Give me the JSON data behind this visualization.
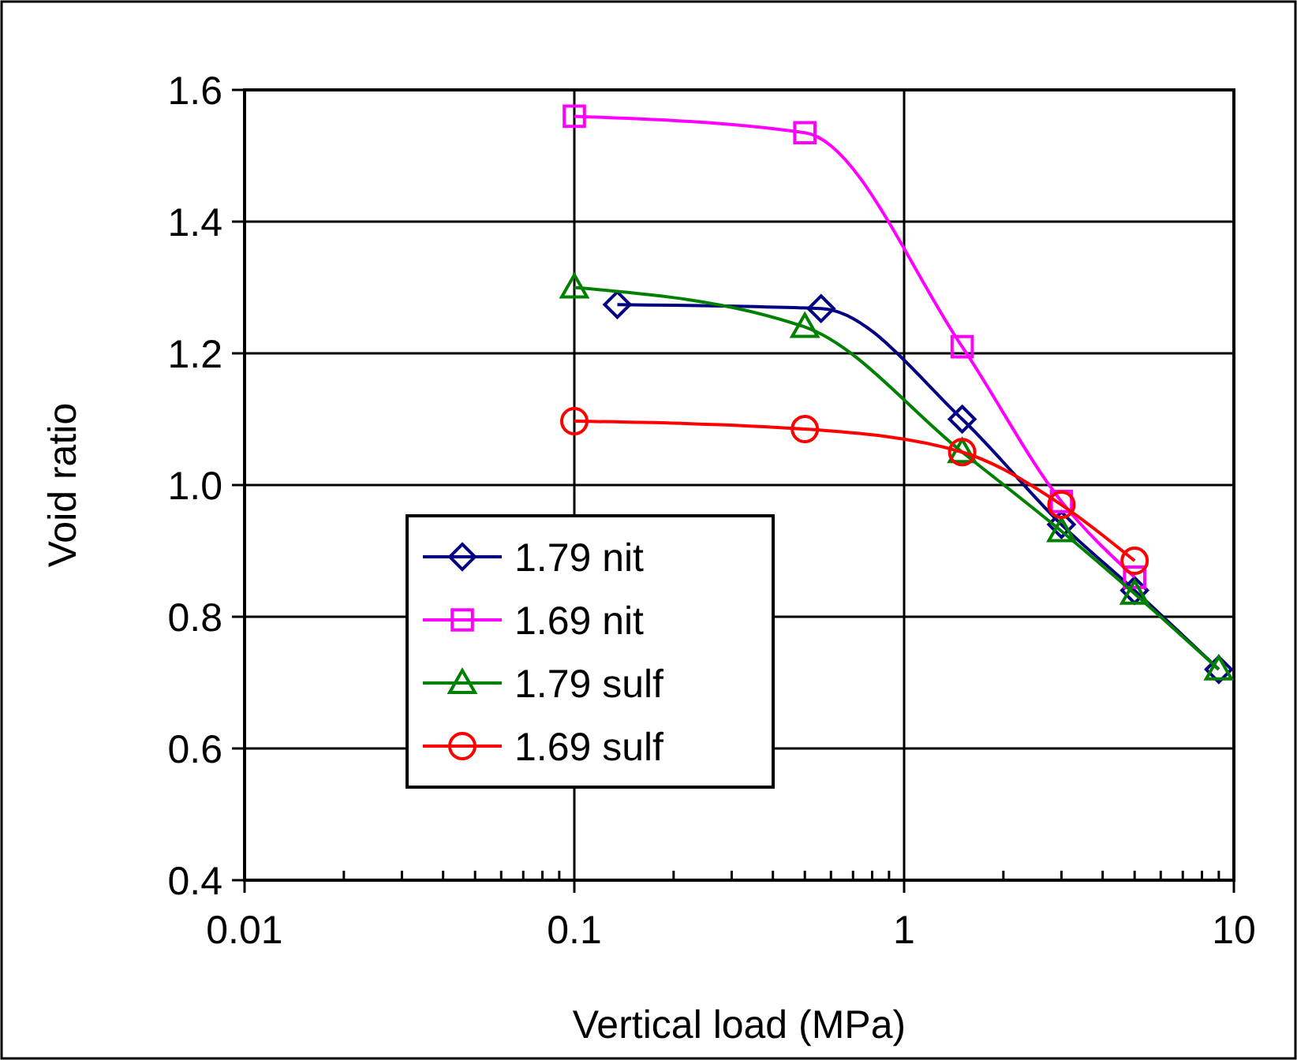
{
  "chart_data": {
    "type": "line",
    "xlabel": "Vertical load (MPa)",
    "ylabel": "Void ratio",
    "log": "x",
    "xlim": [
      0.01,
      10
    ],
    "xticks": [
      0.01,
      0.1,
      1,
      10
    ],
    "ylim": [
      0.4,
      1.6
    ],
    "yticks": [
      0.4,
      0.6,
      0.8,
      {
        "value": 1,
        "label": "1.0"
      },
      1.2,
      1.4,
      1.6
    ],
    "grid": true,
    "legend": "bottom left",
    "series": [
      {
        "name": "1.79 nit",
        "color": "#000080",
        "marker": "diamond",
        "x": [
          0.135,
          0.56,
          1.5,
          3,
          5,
          9
        ],
        "values": [
          1.274,
          1.268,
          1.1,
          0.94,
          0.84,
          0.72
        ]
      },
      {
        "name": "1.69 nit",
        "color": "#ff00ff",
        "marker": "square",
        "x": [
          0.1,
          0.5,
          1.5,
          3,
          5
        ],
        "values": [
          1.56,
          1.535,
          1.21,
          0.975,
          0.86
        ]
      },
      {
        "name": "1.79 sulf",
        "color": "#008000",
        "marker": "triangle",
        "x": [
          0.1,
          0.5,
          1.5,
          3,
          5,
          9
        ],
        "values": [
          1.3,
          1.24,
          1.05,
          0.93,
          0.835,
          0.72
        ]
      },
      {
        "name": "1.69 sulf",
        "color": "#ff0000",
        "marker": "circle",
        "x": [
          0.1,
          0.5,
          1.5,
          3,
          5
        ],
        "values": [
          1.097,
          1.085,
          1.05,
          0.97,
          0.885
        ]
      }
    ]
  }
}
